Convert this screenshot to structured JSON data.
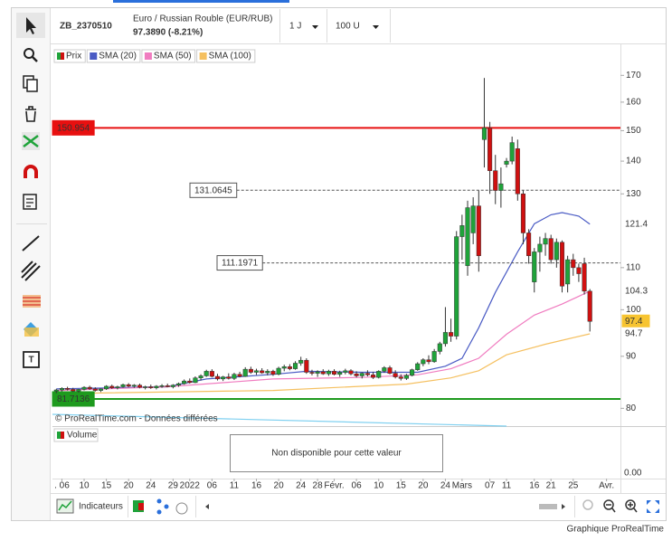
{
  "toolbar": {
    "symbol": "ZB_2370510",
    "instrument": "Euro / Russian Rouble (EUR/RUB)",
    "quote": "97.3890 (-8.21%)",
    "period": "1 J",
    "units": "100 U"
  },
  "chart_data": {
    "type": "candlestick",
    "price_name": "Prix",
    "up_color": "#1fa33a",
    "down_color": "#d01010",
    "ohlc": [
      [
        83.2,
        83.6,
        82.8,
        83.4
      ],
      [
        83.4,
        83.9,
        83.1,
        83.7
      ],
      [
        83.7,
        84.0,
        83.3,
        83.5
      ],
      [
        83.5,
        83.8,
        83.0,
        83.2
      ],
      [
        83.2,
        83.6,
        82.9,
        83.5
      ],
      [
        83.5,
        84.1,
        83.3,
        83.9
      ],
      [
        83.9,
        84.2,
        83.4,
        83.6
      ],
      [
        83.6,
        83.9,
        83.1,
        83.3
      ],
      [
        83.3,
        83.7,
        83.0,
        83.6
      ],
      [
        83.6,
        84.3,
        83.4,
        84.1
      ],
      [
        84.1,
        84.4,
        83.6,
        83.8
      ],
      [
        83.8,
        84.2,
        83.5,
        84.0
      ],
      [
        84.0,
        84.6,
        83.8,
        84.4
      ],
      [
        84.4,
        84.7,
        83.9,
        84.1
      ],
      [
        84.1,
        84.5,
        83.8,
        84.3
      ],
      [
        84.3,
        84.6,
        83.7,
        83.9
      ],
      [
        83.9,
        84.2,
        83.5,
        84.0
      ],
      [
        84.0,
        84.4,
        83.6,
        83.8
      ],
      [
        83.8,
        84.3,
        83.5,
        84.1
      ],
      [
        84.1,
        84.5,
        83.8,
        84.2
      ],
      [
        84.2,
        84.6,
        83.9,
        84.0
      ],
      [
        84.0,
        84.5,
        83.7,
        84.3
      ],
      [
        84.3,
        84.8,
        84.0,
        84.6
      ],
      [
        84.6,
        85.4,
        84.4,
        85.1
      ],
      [
        85.1,
        85.6,
        84.6,
        84.8
      ],
      [
        84.8,
        86.0,
        84.7,
        85.7
      ],
      [
        85.7,
        86.4,
        85.2,
        86.1
      ],
      [
        86.1,
        87.3,
        85.9,
        87.0
      ],
      [
        87.0,
        87.4,
        85.8,
        86.0
      ],
      [
        86.0,
        86.5,
        85.2,
        85.5
      ],
      [
        85.5,
        86.1,
        85.1,
        85.9
      ],
      [
        85.9,
        86.6,
        85.4,
        85.6
      ],
      [
        85.6,
        86.7,
        85.3,
        86.4
      ],
      [
        86.4,
        86.9,
        85.8,
        86.0
      ],
      [
        86.0,
        87.8,
        85.9,
        87.4
      ],
      [
        87.4,
        87.9,
        86.5,
        86.8
      ],
      [
        86.8,
        87.5,
        86.3,
        87.1
      ],
      [
        87.1,
        87.6,
        86.5,
        86.7
      ],
      [
        86.7,
        87.4,
        86.2,
        87.0
      ],
      [
        87.0,
        87.3,
        86.1,
        86.4
      ],
      [
        86.4,
        87.9,
        86.2,
        87.6
      ],
      [
        87.6,
        88.3,
        87.0,
        87.9
      ],
      [
        87.9,
        88.4,
        87.2,
        87.5
      ],
      [
        87.5,
        89.0,
        87.3,
        88.6
      ],
      [
        88.6,
        89.9,
        88.1,
        89.2
      ],
      [
        89.2,
        89.6,
        86.5,
        86.8
      ],
      [
        86.8,
        87.3,
        86.2,
        86.6
      ],
      [
        86.6,
        87.2,
        85.9,
        86.9
      ],
      [
        86.9,
        87.4,
        86.3,
        86.5
      ],
      [
        86.5,
        87.3,
        86.1,
        87.0
      ],
      [
        87.0,
        87.4,
        86.2,
        86.4
      ],
      [
        86.4,
        87.1,
        85.9,
        86.8
      ],
      [
        86.8,
        87.5,
        86.4,
        87.1
      ],
      [
        87.1,
        87.4,
        86.2,
        86.5
      ],
      [
        86.5,
        87.0,
        85.8,
        86.1
      ],
      [
        86.1,
        86.8,
        85.6,
        86.6
      ],
      [
        86.6,
        87.2,
        86.0,
        86.3
      ],
      [
        86.3,
        86.9,
        85.5,
        85.8
      ],
      [
        85.8,
        87.2,
        85.6,
        87.0
      ],
      [
        87.0,
        88.0,
        86.7,
        87.7
      ],
      [
        87.7,
        88.1,
        86.4,
        86.6
      ],
      [
        86.6,
        87.2,
        85.6,
        85.9
      ],
      [
        85.9,
        86.4,
        85.2,
        85.6
      ],
      [
        85.6,
        86.5,
        85.3,
        86.2
      ],
      [
        86.2,
        87.5,
        86.0,
        87.3
      ],
      [
        87.3,
        88.8,
        87.1,
        88.5
      ],
      [
        88.5,
        89.6,
        88.0,
        89.3
      ],
      [
        89.3,
        90.2,
        88.4,
        88.9
      ],
      [
        88.9,
        91.5,
        88.7,
        91.0
      ],
      [
        91.0,
        93.0,
        90.4,
        92.6
      ],
      [
        92.6,
        100.6,
        92.0,
        95.0
      ],
      [
        95.0,
        98.0,
        93.0,
        94.2
      ],
      [
        94.2,
        119.5,
        93.5,
        118.0
      ],
      [
        118.0,
        124.0,
        112.0,
        121.0
      ],
      [
        110.5,
        128.0,
        108.0,
        126.0
      ],
      [
        119.0,
        129.0,
        116.0,
        126.5
      ],
      [
        126.5,
        131.0,
        109.0,
        113.0
      ],
      [
        147.0,
        169.0,
        138.0,
        151.0
      ],
      [
        151.0,
        153.0,
        130.0,
        137.0
      ],
      [
        137.0,
        142.0,
        127.0,
        131.0
      ],
      [
        131.0,
        138.0,
        126.0,
        133.0
      ],
      [
        139.0,
        141.0,
        138.0,
        140.0
      ],
      [
        140.0,
        148.0,
        139.0,
        146.0
      ],
      [
        144.0,
        147.0,
        128.0,
        130.0
      ],
      [
        130.0,
        131.0,
        116.0,
        119.0
      ],
      [
        119.0,
        120.0,
        111.0,
        113.0
      ],
      [
        106.5,
        115.0,
        104.0,
        114.0
      ],
      [
        114.0,
        118.0,
        109.0,
        116.0
      ],
      [
        116.0,
        119.0,
        113.0,
        117.5
      ],
      [
        117.5,
        118.5,
        111.0,
        112.0
      ],
      [
        112.0,
        117.5,
        110.0,
        116.5
      ],
      [
        116.5,
        117.0,
        104.0,
        105.5
      ],
      [
        106.0,
        113.0,
        104.0,
        112.0
      ],
      [
        112.0,
        113.5,
        108.0,
        110.0
      ],
      [
        110.0,
        111.0,
        106.5,
        108.5
      ],
      [
        111.0,
        112.5,
        103.5,
        104.3
      ],
      [
        104.3,
        104.8,
        95.2,
        97.4
      ]
    ],
    "series": [
      {
        "name": "SMA (20)",
        "color": "#4a5bc4",
        "x": [
          0,
          10,
          20,
          27,
          39,
          45,
          55,
          65,
          70,
          73,
          76,
          79,
          83,
          86,
          89,
          91,
          94,
          96
        ],
        "values": [
          83.6,
          83.8,
          84.0,
          85.5,
          86.4,
          87.0,
          86.8,
          86.8,
          88.0,
          89.6,
          96.0,
          104.0,
          114.0,
          121.5,
          124.0,
          124.6,
          123.6,
          121.4
        ]
      },
      {
        "name": "SMA (50)",
        "color": "#f07cc0",
        "x": [
          0,
          20,
          39,
          55,
          65,
          71,
          76,
          81,
          86,
          91,
          96
        ],
        "values": [
          83.3,
          84.0,
          85.5,
          85.8,
          86.3,
          87.5,
          89.6,
          94.6,
          98.8,
          101.3,
          104.3
        ]
      },
      {
        "name": "SMA (100)",
        "color": "#f5c060",
        "x": [
          0,
          39,
          63,
          71,
          76,
          81,
          88,
          96
        ],
        "values": [
          82.7,
          83.3,
          84.5,
          85.7,
          87.1,
          90.3,
          92.5,
          94.7
        ]
      }
    ],
    "levels": [
      {
        "value": 150.954,
        "color": "#e81010",
        "style": "solid"
      },
      {
        "value": 131.0645,
        "color": "#555555",
        "style": "dashed"
      },
      {
        "value": 111.1971,
        "color": "#555555",
        "style": "dashed"
      },
      {
        "value": 81.7136,
        "color": "#1e9a1e",
        "style": "solid"
      }
    ],
    "log_scale": true,
    "ylim": [
      77,
      182
    ],
    "yticks": [
      80,
      90,
      100,
      110,
      130,
      140,
      150,
      160,
      170
    ],
    "xlim": [
      -0.7,
      101.5
    ],
    "xticks": [
      {
        "value": 1,
        "label": ". 06"
      },
      {
        "value": 5,
        "label": "10"
      },
      {
        "value": 9,
        "label": "15"
      },
      {
        "value": 13,
        "label": "20"
      },
      {
        "value": 17,
        "label": "24"
      },
      {
        "value": 21,
        "label": "29"
      },
      {
        "value": 24,
        "label": "2022"
      },
      {
        "value": 28,
        "label": "06"
      },
      {
        "value": 32,
        "label": "11"
      },
      {
        "value": 36,
        "label": "16"
      },
      {
        "value": 40,
        "label": "20"
      },
      {
        "value": 44,
        "label": "24"
      },
      {
        "value": 47,
        "label": "28"
      },
      {
        "value": 50,
        "label": "Févr."
      },
      {
        "value": 54,
        "label": "06"
      },
      {
        "value": 58,
        "label": "10"
      },
      {
        "value": 62,
        "label": "15"
      },
      {
        "value": 66,
        "label": "20"
      },
      {
        "value": 70,
        "label": "24"
      },
      {
        "value": 73,
        "label": "Mars"
      },
      {
        "value": 78,
        "label": "07"
      },
      {
        "value": 81,
        "label": "11"
      },
      {
        "value": 86,
        "label": "16"
      },
      {
        "value": 89,
        "label": "21"
      },
      {
        "value": 93,
        "label": "25"
      },
      {
        "value": 99,
        "label": "Avr."
      }
    ],
    "watermark": "© ProRealTime.com - Données différées"
  },
  "volume_pane": {
    "title": "Volume",
    "message": "Non disponible pour cette valeur",
    "yticks": [
      {
        "value": 0,
        "label": "0.00"
      }
    ]
  },
  "bottom_toolbar": {
    "indicators": "Indicateurs"
  },
  "footer": "Graphique ProRealTime"
}
